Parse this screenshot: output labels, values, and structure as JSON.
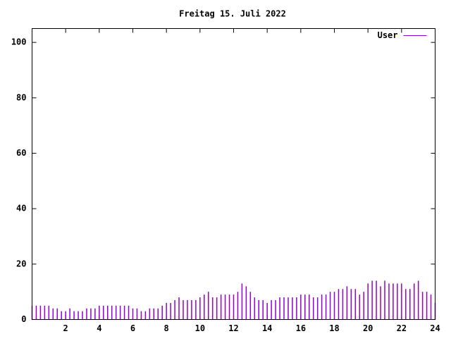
{
  "chart_data": {
    "type": "impulses",
    "title": "Freitag 15. Juli 2022",
    "x": [
      0,
      0.25,
      0.5,
      0.75,
      1,
      1.25,
      1.5,
      1.75,
      2,
      2.25,
      2.5,
      2.75,
      3,
      3.25,
      3.5,
      3.75,
      4,
      4.25,
      4.5,
      4.75,
      5,
      5.25,
      5.5,
      5.75,
      6,
      6.25,
      6.5,
      6.75,
      7,
      7.25,
      7.5,
      7.75,
      8,
      8.25,
      8.5,
      8.75,
      9,
      9.25,
      9.5,
      9.75,
      10,
      10.25,
      10.5,
      10.75,
      11,
      11.25,
      11.5,
      11.75,
      12,
      12.25,
      12.5,
      12.75,
      13,
      13.25,
      13.5,
      13.75,
      14,
      14.25,
      14.5,
      14.75,
      15,
      15.25,
      15.5,
      15.75,
      16,
      16.25,
      16.5,
      16.75,
      17,
      17.25,
      17.5,
      17.75,
      18,
      18.25,
      18.5,
      18.75,
      19,
      19.25,
      19.5,
      19.75,
      20,
      20.25,
      20.5,
      20.75,
      21,
      21.25,
      21.5,
      21.75,
      22,
      22.25,
      22.5,
      22.75,
      23,
      23.25,
      23.5,
      23.75,
      24
    ],
    "series": [
      {
        "name": "User",
        "color": "#9400d3",
        "values": [
          5,
          5,
          5,
          5,
          5,
          4,
          4,
          3,
          3,
          4,
          3,
          3,
          3,
          4,
          4,
          4,
          5,
          5,
          5,
          5,
          5,
          5,
          5,
          5,
          4,
          4,
          3,
          3,
          4,
          4,
          4,
          5,
          6,
          6,
          7,
          8,
          7,
          7,
          7,
          7,
          8,
          9,
          10,
          8,
          8,
          9,
          9,
          9,
          9,
          10,
          13,
          12,
          10,
          8,
          7,
          7,
          6,
          7,
          7,
          8,
          8,
          8,
          8,
          8,
          9,
          9,
          9,
          8,
          8,
          9,
          9,
          10,
          10,
          11,
          11,
          12,
          11,
          11,
          9,
          10,
          13,
          14,
          14,
          12,
          14,
          13,
          13,
          13,
          13,
          11,
          11,
          13,
          14,
          10,
          10,
          9,
          6
        ]
      }
    ],
    "xlim": [
      0,
      24
    ],
    "xticks": [
      2,
      4,
      6,
      8,
      10,
      12,
      14,
      16,
      18,
      20,
      22,
      24
    ],
    "ylim": [
      0,
      105
    ],
    "yticks": [
      0,
      20,
      40,
      60,
      80,
      100
    ],
    "legend": "top-right"
  }
}
